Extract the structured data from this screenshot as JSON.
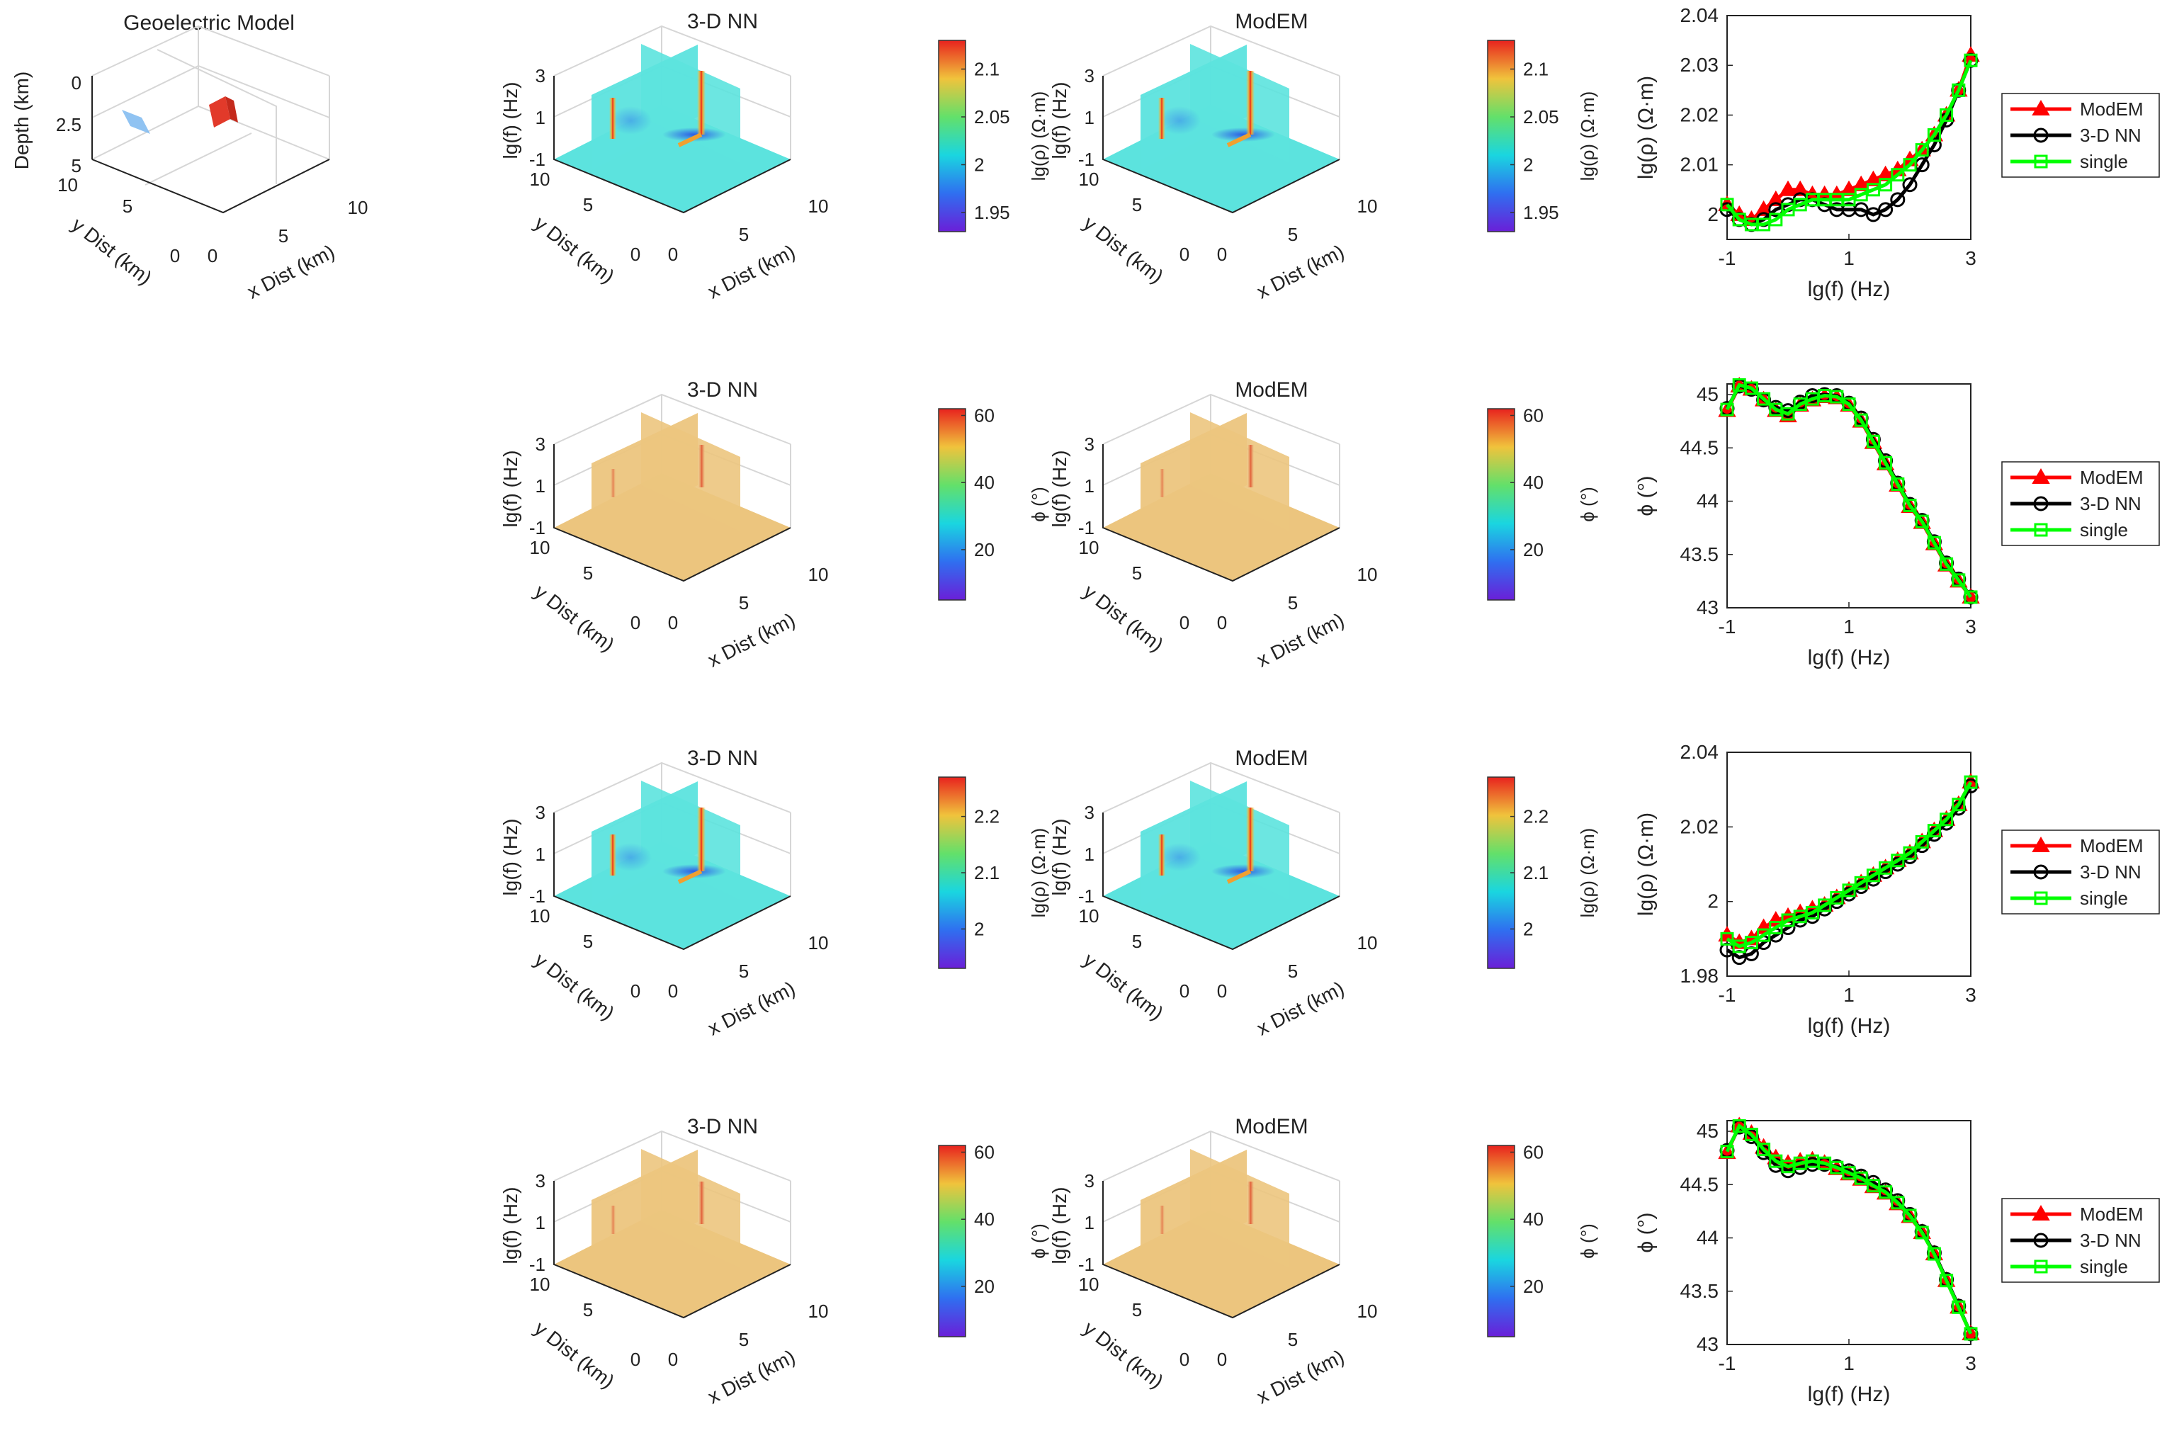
{
  "figure": {
    "model_title": "Geoelectric Model",
    "model_axes": {
      "zlabel": "Depth (km)",
      "ylabel": "y Dist (km)",
      "xlabel": "x Dist (km)",
      "zticks": [
        "0",
        "2.5",
        "5"
      ],
      "yticks": [
        "10",
        "5",
        "0"
      ],
      "xticks": [
        "0",
        "5",
        "10"
      ]
    },
    "colors": {
      "modem": "#ff0000",
      "nn": "#000000",
      "single": "#00ff00",
      "block_conductive": "#e23a2a",
      "block_resistive": "#7cb8f0",
      "rho_plane": "#5ce3de",
      "phase_plane": "#ecc57e"
    }
  },
  "chart_data": [
    {
      "type": "heatmap",
      "title": "3-D NN",
      "zlabel": "lg(f) (Hz)",
      "zticks": [
        "3",
        "1",
        "-1"
      ],
      "ylabel": "y Dist (km)",
      "yticks": [
        "10",
        "5",
        "0"
      ],
      "xlabel": "x Dist (km)",
      "xticks": [
        "0",
        "5",
        "10"
      ],
      "colorbar": {
        "label": "lg(ρ) (Ω·m)",
        "range": [
          1.93,
          2.13
        ],
        "ticks": [
          "2.1",
          "2.05",
          "2",
          "1.95"
        ]
      }
    },
    {
      "type": "heatmap",
      "title": "ModEM",
      "zlabel": "lg(f) (Hz)",
      "zticks": [
        "3",
        "1",
        "-1"
      ],
      "ylabel": "y Dist (km)",
      "yticks": [
        "10",
        "5",
        "0"
      ],
      "xlabel": "x Dist (km)",
      "xticks": [
        "0",
        "5",
        "10"
      ],
      "colorbar": {
        "label": "lg(ρ) (Ω·m)",
        "range": [
          1.93,
          2.13
        ],
        "ticks": [
          "2.1",
          "2.05",
          "2",
          "1.95"
        ]
      }
    },
    {
      "type": "line",
      "xlabel": "lg(f) (Hz)",
      "ylabel": "lg(ρ) (Ω·m)",
      "xlim": [
        -1,
        3
      ],
      "ylim": [
        1.995,
        2.04
      ],
      "xticks": [
        "-1",
        "1",
        "3"
      ],
      "yticks": [
        "2.04",
        "2.03",
        "2.02",
        "2.01",
        "2"
      ],
      "legend": [
        "ModEM",
        "3-D NN",
        "single"
      ],
      "x": [
        -1.0,
        -0.8,
        -0.6,
        -0.4,
        -0.2,
        0.0,
        0.2,
        0.4,
        0.6,
        0.8,
        1.0,
        1.2,
        1.4,
        1.6,
        1.8,
        2.0,
        2.2,
        2.4,
        2.6,
        2.8,
        3.0
      ],
      "series": [
        {
          "name": "ModEM",
          "values": [
            2.002,
            2.0,
            1.999,
            2.001,
            2.003,
            2.005,
            2.005,
            2.004,
            2.004,
            2.004,
            2.005,
            2.006,
            2.007,
            2.008,
            2.009,
            2.011,
            2.013,
            2.016,
            2.02,
            2.025,
            2.032
          ]
        },
        {
          "name": "3-D NN",
          "values": [
            2.001,
            1.999,
            1.998,
            1.999,
            2.001,
            2.002,
            2.003,
            2.003,
            2.002,
            2.001,
            2.001,
            2.001,
            2.0,
            2.001,
            2.003,
            2.006,
            2.01,
            2.014,
            2.019,
            2.025,
            2.031
          ]
        },
        {
          "name": "single",
          "values": [
            2.002,
            1.999,
            1.998,
            1.998,
            1.999,
            2.001,
            2.002,
            2.003,
            2.003,
            2.003,
            2.003,
            2.004,
            2.005,
            2.006,
            2.008,
            2.01,
            2.013,
            2.016,
            2.02,
            2.025,
            2.031
          ]
        }
      ]
    },
    {
      "type": "heatmap",
      "title": "3-D NN",
      "zlabel": "lg(f) (Hz)",
      "zticks": [
        "3",
        "1",
        "-1"
      ],
      "ylabel": "y Dist (km)",
      "yticks": [
        "10",
        "5",
        "0"
      ],
      "xlabel": "x Dist (km)",
      "xticks": [
        "0",
        "5",
        "10"
      ],
      "colorbar": {
        "label": "ϕ (°)",
        "range": [
          5,
          62
        ],
        "ticks": [
          "60",
          "40",
          "20"
        ]
      }
    },
    {
      "type": "heatmap",
      "title": "ModEM",
      "zlabel": "lg(f) (Hz)",
      "zticks": [
        "3",
        "1",
        "-1"
      ],
      "ylabel": "y Dist (km)",
      "yticks": [
        "10",
        "5",
        "0"
      ],
      "xlabel": "x Dist (km)",
      "xticks": [
        "0",
        "5",
        "10"
      ],
      "colorbar": {
        "label": "ϕ (°)",
        "range": [
          5,
          62
        ],
        "ticks": [
          "60",
          "40",
          "20"
        ]
      }
    },
    {
      "type": "line",
      "xlabel": "lg(f) (Hz)",
      "ylabel": "ϕ (°)",
      "xlim": [
        -1,
        3
      ],
      "ylim": [
        43,
        45.1
      ],
      "xticks": [
        "-1",
        "1",
        "3"
      ],
      "yticks": [
        "45",
        "44.5",
        "44",
        "43.5",
        "43"
      ],
      "legend": [
        "ModEM",
        "3-D NN",
        "single"
      ],
      "x": [
        -1.0,
        -0.8,
        -0.6,
        -0.4,
        -0.2,
        0.0,
        0.2,
        0.4,
        0.6,
        0.8,
        1.0,
        1.2,
        1.4,
        1.6,
        1.8,
        2.0,
        2.2,
        2.4,
        2.6,
        2.8,
        3.0
      ],
      "series": [
        {
          "name": "ModEM",
          "values": [
            44.85,
            45.08,
            45.05,
            44.95,
            44.85,
            44.8,
            44.9,
            44.95,
            44.98,
            44.97,
            44.9,
            44.75,
            44.55,
            44.35,
            44.15,
            43.95,
            43.8,
            43.6,
            43.4,
            43.25,
            43.1
          ]
        },
        {
          "name": "3-D NN",
          "values": [
            44.87,
            45.08,
            45.05,
            44.95,
            44.88,
            44.85,
            44.93,
            44.99,
            45.0,
            44.99,
            44.92,
            44.78,
            44.58,
            44.38,
            44.17,
            43.97,
            43.82,
            43.62,
            43.42,
            43.27,
            43.1
          ]
        },
        {
          "name": "single",
          "values": [
            44.86,
            45.09,
            45.06,
            44.96,
            44.86,
            44.82,
            44.91,
            44.96,
            44.99,
            44.98,
            44.91,
            44.76,
            44.56,
            44.36,
            44.16,
            43.96,
            43.81,
            43.61,
            43.41,
            43.26,
            43.1
          ]
        }
      ]
    },
    {
      "type": "heatmap",
      "title": "3-D NN",
      "zlabel": "lg(f) (Hz)",
      "zticks": [
        "3",
        "1",
        "-1"
      ],
      "ylabel": "y Dist (km)",
      "yticks": [
        "10",
        "5",
        "0"
      ],
      "xlabel": "x Dist (km)",
      "xticks": [
        "0",
        "5",
        "10"
      ],
      "colorbar": {
        "label": "lg(ρ) (Ω·m)",
        "range": [
          1.93,
          2.27
        ],
        "ticks": [
          "2.2",
          "2.1",
          "2"
        ]
      }
    },
    {
      "type": "heatmap",
      "title": "ModEM",
      "zlabel": "lg(f) (Hz)",
      "zticks": [
        "3",
        "1",
        "-1"
      ],
      "ylabel": "y Dist (km)",
      "yticks": [
        "10",
        "5",
        "0"
      ],
      "xlabel": "x Dist (km)",
      "xticks": [
        "0",
        "5",
        "10"
      ],
      "colorbar": {
        "label": "lg(ρ) (Ω·m)",
        "range": [
          1.93,
          2.27
        ],
        "ticks": [
          "2.2",
          "2.1",
          "2"
        ]
      }
    },
    {
      "type": "line",
      "xlabel": "lg(f) (Hz)",
      "ylabel": "lg(ρ) (Ω·m)",
      "xlim": [
        -1,
        3
      ],
      "ylim": [
        1.98,
        2.04
      ],
      "xticks": [
        "-1",
        "1",
        "3"
      ],
      "yticks": [
        "2.04",
        "2.02",
        "2",
        "1.98"
      ],
      "legend": [
        "ModEM",
        "3-D NN",
        "single"
      ],
      "x": [
        -1.0,
        -0.8,
        -0.6,
        -0.4,
        -0.2,
        0.0,
        0.2,
        0.4,
        0.6,
        0.8,
        1.0,
        1.2,
        1.4,
        1.6,
        1.8,
        2.0,
        2.2,
        2.4,
        2.6,
        2.8,
        3.0
      ],
      "series": [
        {
          "name": "ModEM",
          "values": [
            1.991,
            1.989,
            1.99,
            1.993,
            1.995,
            1.996,
            1.997,
            1.998,
            1.999,
            2.001,
            2.003,
            2.005,
            2.007,
            2.009,
            2.011,
            2.013,
            2.016,
            2.019,
            2.022,
            2.026,
            2.032
          ]
        },
        {
          "name": "3-D NN",
          "values": [
            1.987,
            1.985,
            1.986,
            1.989,
            1.991,
            1.993,
            1.995,
            1.996,
            1.998,
            2.0,
            2.002,
            2.004,
            2.006,
            2.008,
            2.01,
            2.012,
            2.015,
            2.018,
            2.021,
            2.025,
            2.031
          ]
        },
        {
          "name": "single",
          "values": [
            1.99,
            1.988,
            1.989,
            1.991,
            1.993,
            1.995,
            1.996,
            1.997,
            1.999,
            2.001,
            2.003,
            2.005,
            2.007,
            2.009,
            2.011,
            2.013,
            2.016,
            2.019,
            2.022,
            2.026,
            2.032
          ]
        }
      ]
    },
    {
      "type": "heatmap",
      "title": "3-D NN",
      "zlabel": "lg(f) (Hz)",
      "zticks": [
        "3",
        "1",
        "-1"
      ],
      "ylabel": "y Dist (km)",
      "yticks": [
        "10",
        "5",
        "0"
      ],
      "xlabel": "x Dist (km)",
      "xticks": [
        "0",
        "5",
        "10"
      ],
      "colorbar": {
        "label": "ϕ (°)",
        "range": [
          5,
          62
        ],
        "ticks": [
          "60",
          "40",
          "20"
        ]
      }
    },
    {
      "type": "heatmap",
      "title": "ModEM",
      "zlabel": "lg(f) (Hz)",
      "zticks": [
        "3",
        "1",
        "-1"
      ],
      "ylabel": "y Dist (km)",
      "yticks": [
        "10",
        "5",
        "0"
      ],
      "xlabel": "x Dist (km)",
      "xticks": [
        "0",
        "5",
        "10"
      ],
      "colorbar": {
        "label": "ϕ (°)",
        "range": [
          5,
          62
        ],
        "ticks": [
          "60",
          "40",
          "20"
        ]
      }
    },
    {
      "type": "line",
      "xlabel": "lg(f) (Hz)",
      "ylabel": "ϕ (°)",
      "xlim": [
        -1,
        3
      ],
      "ylim": [
        43,
        45.1
      ],
      "xticks": [
        "-1",
        "1",
        "3"
      ],
      "yticks": [
        "45",
        "44.5",
        "44",
        "43.5",
        "43"
      ],
      "legend": [
        "ModEM",
        "3-D NN",
        "single"
      ],
      "x": [
        -1.0,
        -0.8,
        -0.6,
        -0.4,
        -0.2,
        0.0,
        0.2,
        0.4,
        0.6,
        0.8,
        1.0,
        1.2,
        1.4,
        1.6,
        1.8,
        2.0,
        2.2,
        2.4,
        2.6,
        2.8,
        3.0
      ],
      "series": [
        {
          "name": "ModEM",
          "values": [
            44.8,
            45.05,
            44.98,
            44.85,
            44.75,
            44.7,
            44.72,
            44.73,
            44.7,
            44.65,
            44.6,
            44.55,
            44.48,
            44.42,
            44.32,
            44.2,
            44.05,
            43.85,
            43.6,
            43.35,
            43.1
          ]
        },
        {
          "name": "3-D NN",
          "values": [
            44.82,
            45.04,
            44.95,
            44.8,
            44.68,
            44.63,
            44.66,
            44.69,
            44.69,
            44.67,
            44.63,
            44.58,
            44.52,
            44.45,
            44.35,
            44.22,
            44.06,
            43.86,
            43.61,
            43.36,
            43.1
          ]
        },
        {
          "name": "single",
          "values": [
            44.81,
            45.05,
            44.97,
            44.83,
            44.72,
            44.67,
            44.7,
            44.72,
            44.7,
            44.66,
            44.61,
            44.56,
            44.49,
            44.43,
            44.33,
            44.21,
            44.05,
            43.85,
            43.6,
            43.35,
            43.1
          ]
        }
      ]
    }
  ]
}
